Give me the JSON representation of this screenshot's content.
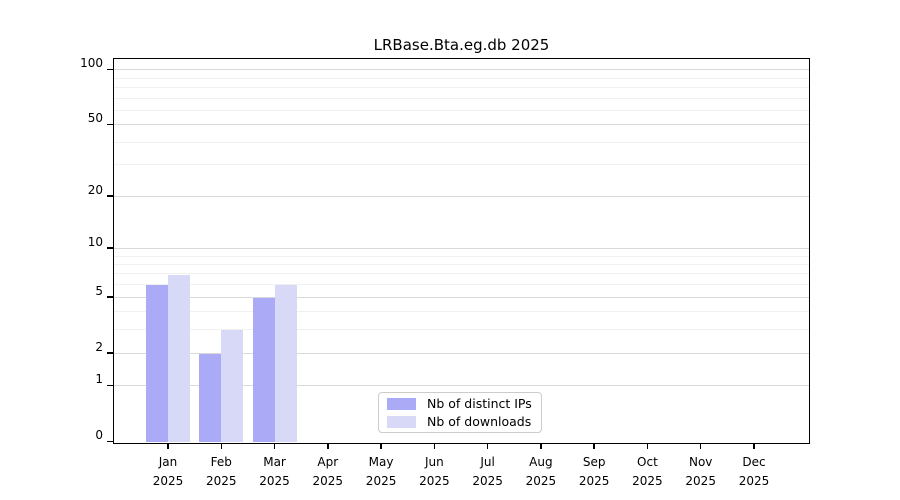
{
  "chart_data": {
    "type": "bar",
    "title": "LRBase.Bta.eg.db 2025",
    "categories": [
      "Jan",
      "Feb",
      "Mar",
      "Apr",
      "May",
      "Jun",
      "Jul",
      "Aug",
      "Sep",
      "Oct",
      "Nov",
      "Dec"
    ],
    "category_sublabel": "2025",
    "series": [
      {
        "name": "Nb of distinct IPs",
        "color": "#aaaaf6",
        "values": [
          6,
          2,
          5,
          0,
          0,
          0,
          0,
          0,
          0,
          0,
          0,
          0
        ]
      },
      {
        "name": "Nb of downloads",
        "color": "#d8d8f7",
        "values": [
          7,
          3,
          6,
          0,
          0,
          0,
          0,
          0,
          0,
          0,
          0,
          0
        ]
      }
    ],
    "yscale": "log1p",
    "ylim": [
      0,
      118
    ],
    "yticks": [
      0,
      1,
      2,
      5,
      10,
      20,
      50,
      100
    ],
    "minor_yticks": [
      3,
      4,
      6,
      7,
      8,
      9,
      30,
      40,
      60,
      70,
      80,
      90
    ],
    "grid": true,
    "legend_position": "lower center"
  }
}
